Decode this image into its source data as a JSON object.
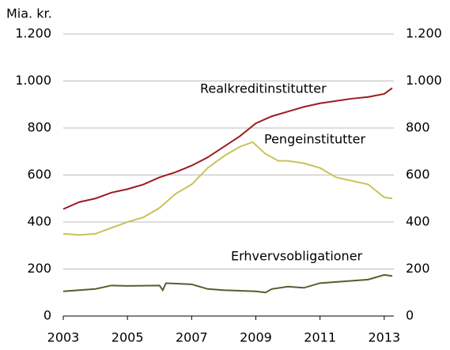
{
  "chart_data": {
    "type": "line",
    "ylabel": "Mia. kr.",
    "xlim": [
      2003,
      2013.3
    ],
    "xticks": [
      2003,
      2005,
      2007,
      2009,
      2011,
      2013
    ],
    "ylim": [
      0,
      1200
    ],
    "yticks": [
      0,
      200,
      400,
      600,
      800,
      {
        "value": 1000,
        "label": "1.000"
      },
      {
        "value": 1200,
        "label": "1.200"
      }
    ],
    "y2lim": [
      0,
      1200
    ],
    "y2ticks": [
      0,
      200,
      400,
      600,
      800,
      {
        "value": 1000,
        "label": "1.000"
      },
      {
        "value": 1200,
        "label": "1.200"
      }
    ],
    "grid": true,
    "series": [
      {
        "name": "Realkreditinstitutter",
        "color": "#9b1b20",
        "x": [
          2003,
          2003.5,
          2004,
          2004.5,
          2005,
          2005.5,
          2006,
          2006.5,
          2007,
          2007.5,
          2008,
          2008.5,
          2009,
          2009.5,
          2010,
          2010.5,
          2011,
          2011.5,
          2012,
          2012.5,
          2013,
          2013.25
        ],
        "values": [
          455,
          485,
          500,
          525,
          540,
          560,
          590,
          612,
          640,
          675,
          720,
          765,
          820,
          850,
          870,
          890,
          905,
          915,
          925,
          932,
          945,
          970
        ]
      },
      {
        "name": "Pengeinstitutter",
        "color": "#c8c25a",
        "x": [
          2003,
          2003.5,
          2004,
          2004.5,
          2005,
          2005.5,
          2006,
          2006.5,
          2007,
          2007.5,
          2008,
          2008.5,
          2008.9,
          2009.3,
          2009.7,
          2010,
          2010.5,
          2011,
          2011.5,
          2012,
          2012.5,
          2013,
          2013.25
        ],
        "values": [
          350,
          345,
          350,
          375,
          400,
          420,
          460,
          520,
          560,
          630,
          680,
          720,
          740,
          690,
          660,
          660,
          650,
          630,
          590,
          575,
          560,
          505,
          500
        ]
      },
      {
        "name": "Erhvervsobligationer",
        "color": "#5d5a2e",
        "x": [
          2003,
          2004,
          2004.5,
          2005,
          2006,
          2006.1,
          2006.2,
          2007,
          2007.5,
          2008,
          2009,
          2009.3,
          2009.5,
          2010,
          2010.5,
          2011,
          2011.5,
          2012,
          2012.5,
          2013,
          2013.25
        ],
        "values": [
          105,
          115,
          130,
          128,
          130,
          110,
          140,
          135,
          115,
          110,
          105,
          100,
          115,
          125,
          120,
          140,
          145,
          150,
          155,
          175,
          170
        ]
      }
    ]
  }
}
